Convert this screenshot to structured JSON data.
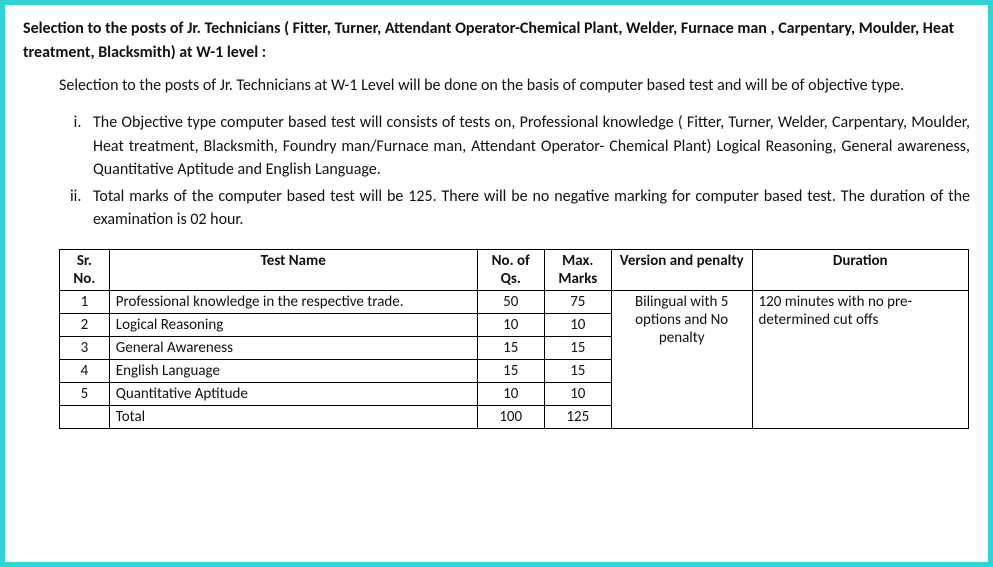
{
  "title": {
    "part1": "Selection to the posts of Jr. Technicians ( Fitter, Turner, Attendant Operator-Chemical Plant, Welder, Furnace man , Carpentary, Moulder, Heat treatment, Blacksmith) at W-1 level",
    "suffix": " :"
  },
  "intro": "Selection to the posts of Jr. Technicians at  W-1 Level will be done on the basis of computer based test and will be of objective type.",
  "points": {
    "i_pre": "The Objective type computer based test will consists of tests on, Professional knowledge ( Fitter, Turner, Welder, Carpentary, Moulder, Heat treatment, Blacksmith, Foundry man/Furnace man, Attendant Operator- Chemical Plant) ",
    "i_post": "Logical Reasoning, General awareness, Quantitative Aptitude and English Language.",
    "ii": "Total marks of the computer based test will be 125. There will be no negative marking for computer based test. The duration of the examination is 02 hour."
  },
  "table": {
    "headers": {
      "sr": "Sr. No.",
      "name": "Test Name",
      "qs": "No. of Qs.",
      "marks": "Max. Marks",
      "version": "Version and penalty",
      "duration": "Duration"
    },
    "rows": [
      {
        "sr": "1",
        "name": "Professional knowledge in the respective trade.",
        "qs": "50",
        "marks": "75"
      },
      {
        "sr": "2",
        "name": "Logical Reasoning",
        "qs": "10",
        "marks": "10"
      },
      {
        "sr": "3",
        "name": "General Awareness",
        "qs": "15",
        "marks": "15"
      },
      {
        "sr": "4",
        "name": "English Language",
        "qs": "15",
        "marks": "15"
      },
      {
        "sr": "5",
        "name": "Quantitative Aptitude",
        "qs": "10",
        "marks": "10"
      }
    ],
    "total": {
      "label": "Total",
      "qs": "100",
      "marks": "125"
    },
    "version_text": "Bilingual with 5 options and No penalty",
    "duration_text": "120 minutes with no pre- determined cut offs"
  }
}
